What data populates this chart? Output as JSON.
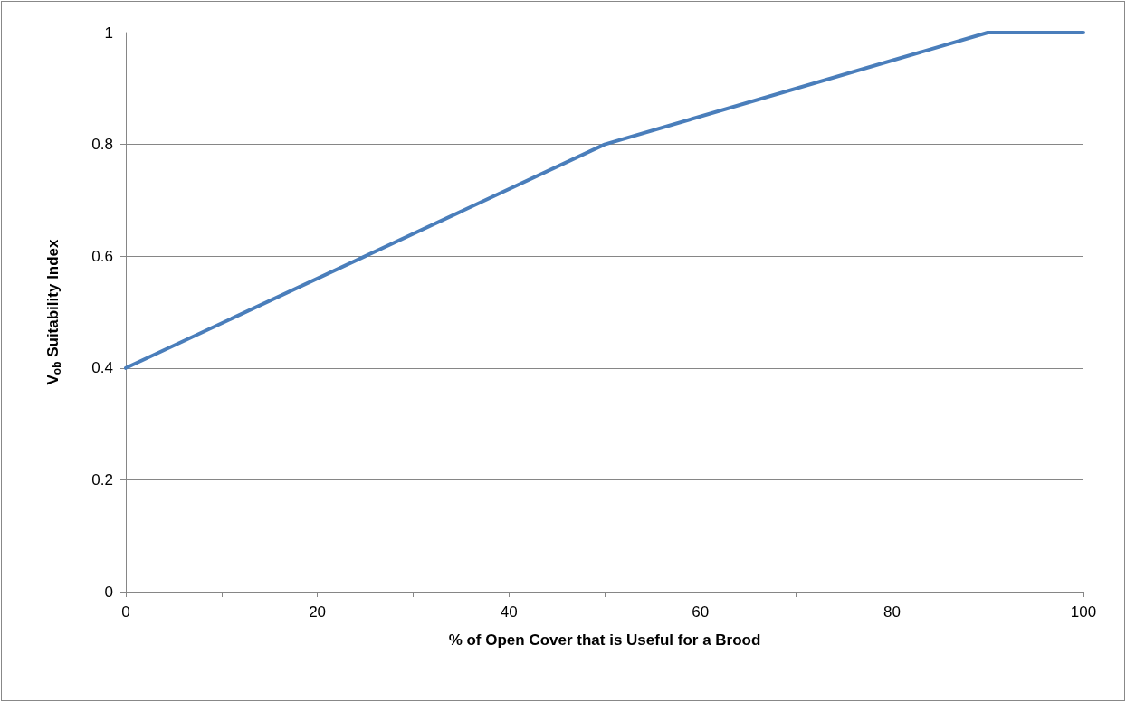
{
  "chart_data": {
    "type": "line",
    "xlabel": "% of Open Cover that is Useful for a Brood",
    "ylabel": "V$_{ob}$ Suitability Index",
    "x": [
      0,
      50,
      90,
      100
    ],
    "series": [
      {
        "color": "#4a7ebb",
        "values": [
          0.4,
          0.8,
          1,
          1
        ]
      }
    ],
    "xlim": [
      0,
      100
    ],
    "xticks": [
      0,
      {
        "value": 10,
        "label": null
      },
      20,
      {
        "value": 30,
        "label": null
      },
      40,
      {
        "value": 50,
        "label": null
      },
      60,
      {
        "value": 70,
        "label": null
      },
      80,
      {
        "value": 90,
        "label": null
      },
      100
    ],
    "ylim": [
      0,
      1
    ],
    "yticks": [
      0,
      0.2,
      0.4,
      0.6,
      0.8,
      1
    ],
    "grid": "y",
    "marker": "none",
    "line_style": "solid"
  }
}
